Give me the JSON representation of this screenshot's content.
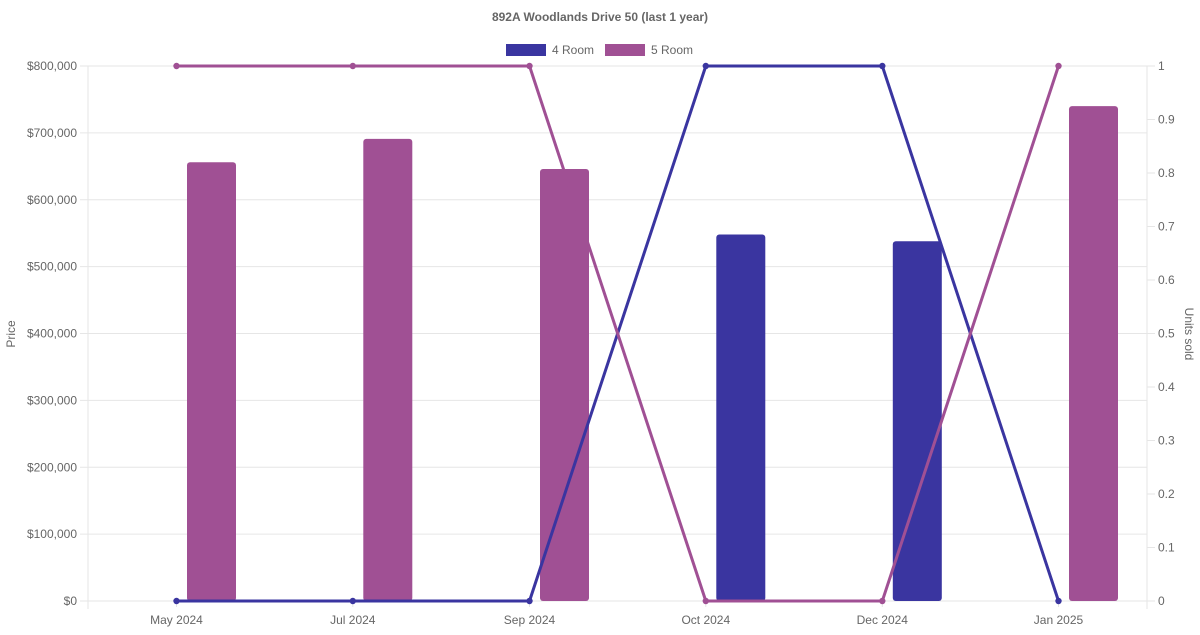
{
  "chart_data": {
    "type": "bar",
    "title": "892A Woodlands Drive 50 (last 1 year)",
    "categories": [
      "May 2024",
      "Jul 2024",
      "Sep 2024",
      "Oct 2024",
      "Dec 2024",
      "Jan 2025"
    ],
    "ylabel_left": "Price",
    "ylabel_right": "Units sold",
    "ylim_left": [
      0,
      800000
    ],
    "ylim_right": [
      0,
      1
    ],
    "yticks_left": [
      "$0",
      "$100,000",
      "$200,000",
      "$300,000",
      "$400,000",
      "$500,000",
      "$600,000",
      "$700,000",
      "$800,000"
    ],
    "yticks_right": [
      "0",
      "0.1",
      "0.2",
      "0.3",
      "0.4",
      "0.5",
      "0.6",
      "0.7",
      "0.8",
      "0.9",
      "1"
    ],
    "grid": true,
    "legend_position": "top-center",
    "series": [
      {
        "name": "4 Room",
        "color": "#3a35a0",
        "price": [
          null,
          null,
          null,
          548000,
          538000,
          null
        ],
        "units_sold": [
          0,
          0,
          0,
          1,
          1,
          0
        ]
      },
      {
        "name": "5 Room",
        "color": "#a05094",
        "price": [
          656000,
          691000,
          646000,
          null,
          null,
          740000
        ],
        "units_sold": [
          1,
          1,
          1,
          0,
          0,
          1
        ]
      }
    ]
  }
}
